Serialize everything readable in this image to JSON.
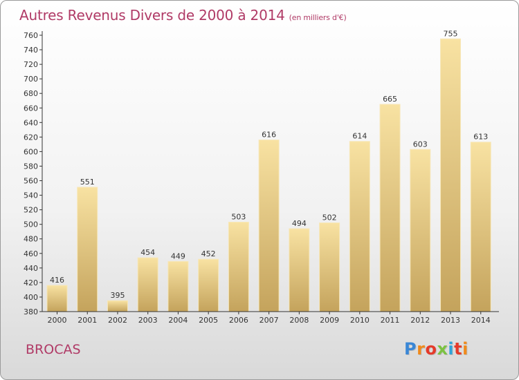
{
  "title": "Autres Revenus Divers de 2000 à 2014",
  "title_unit": "(en milliers d'€)",
  "commune": "BROCAS",
  "brand": "Proxiti",
  "brand_colors": [
    "#3a87d6",
    "#f08a1c",
    "#e53a2a",
    "#7cc242",
    "#2fa3d8",
    "#e53a2a",
    "#f08a1c"
  ],
  "colors": {
    "title": "#b03a66",
    "bar_light": "#f8e2a2",
    "bar_dark": "#c4a35c",
    "axis": "#333333"
  },
  "chart_data": {
    "type": "bar",
    "categories": [
      "2000",
      "2001",
      "2002",
      "2003",
      "2004",
      "2005",
      "2006",
      "2007",
      "2008",
      "2009",
      "2010",
      "2011",
      "2012",
      "2013",
      "2014"
    ],
    "values": [
      416,
      551,
      395,
      454,
      449,
      452,
      503,
      616,
      494,
      502,
      614,
      665,
      603,
      755,
      613
    ],
    "ylim": [
      380,
      760
    ],
    "yticks": [
      380,
      400,
      420,
      440,
      460,
      480,
      500,
      520,
      540,
      560,
      580,
      600,
      620,
      640,
      660,
      680,
      700,
      720,
      740,
      760
    ],
    "grid": false,
    "legend": "none"
  }
}
